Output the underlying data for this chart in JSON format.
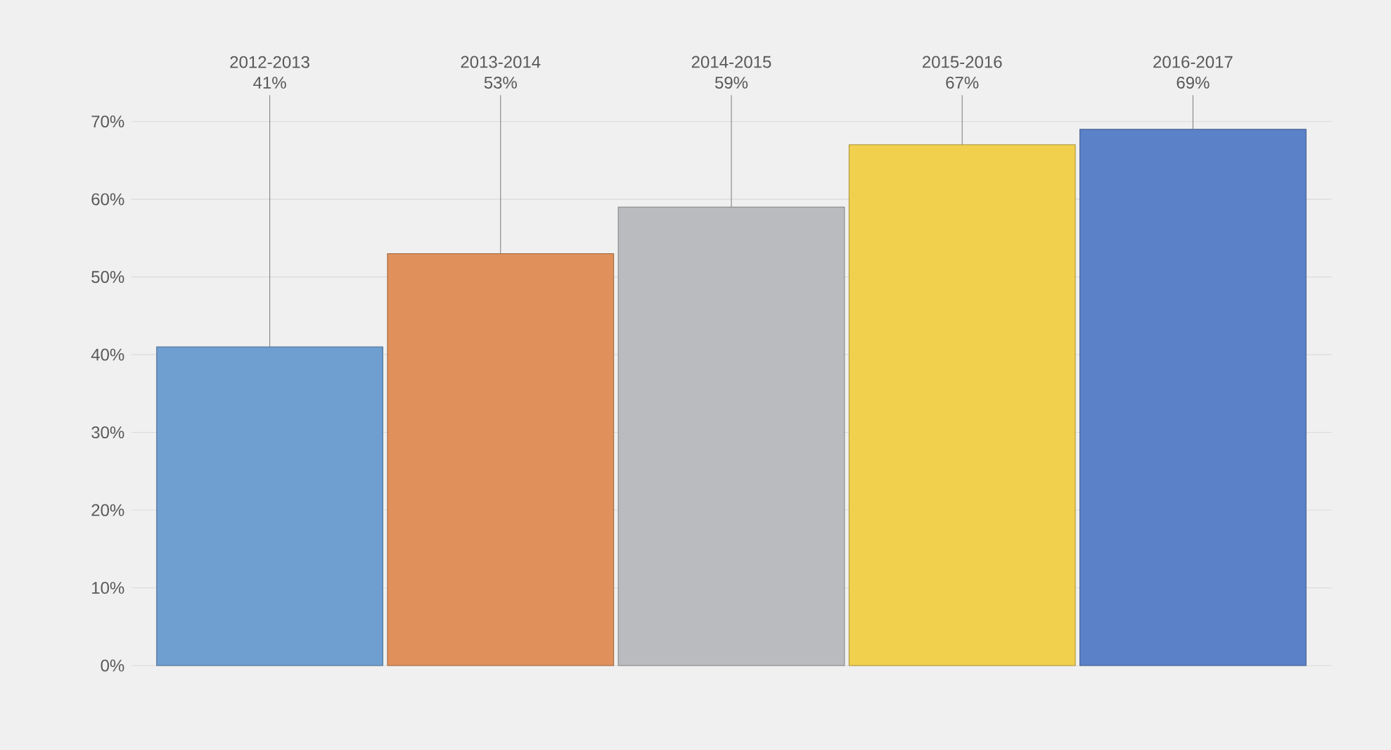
{
  "chart_data": {
    "type": "bar",
    "categories": [
      "2012-2013",
      "2013-2014",
      "2014-2015",
      "2015-2016",
      "2016-2017"
    ],
    "values": [
      41,
      53,
      59,
      67,
      69
    ],
    "colors": [
      "#6e9fd0",
      "#e0905a",
      "#b9bbbe",
      "#f1d04e",
      "#5b82c8"
    ],
    "value_labels": [
      "41%",
      "53%",
      "59%",
      "67%",
      "69%"
    ],
    "ylim": [
      0,
      70
    ],
    "yticks": [
      {
        "value": 0,
        "label": "0%"
      },
      {
        "value": 10,
        "label": "10%"
      },
      {
        "value": 20,
        "label": "20%"
      },
      {
        "value": 30,
        "label": "30%"
      },
      {
        "value": 40,
        "label": "40%"
      },
      {
        "value": 50,
        "label": "50%"
      },
      {
        "value": 60,
        "label": "60%"
      },
      {
        "value": 70,
        "label": "70%"
      }
    ],
    "grid": "y"
  }
}
